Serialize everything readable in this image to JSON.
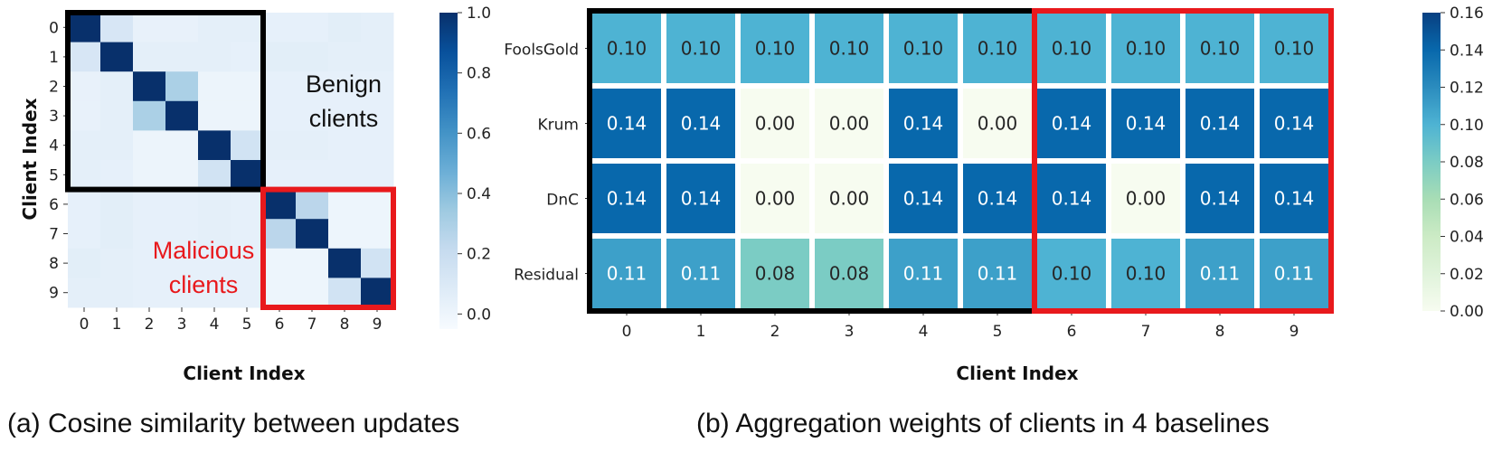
{
  "captions": {
    "a": "(a) Cosine similarity between updates",
    "b": "(b) Aggregation weights of clients in 4 baselines"
  },
  "annotations": {
    "benign_line1": "Benign",
    "benign_line2": "clients",
    "malicious_line1": "Malicious",
    "malicious_line2": "clients"
  },
  "colors": {
    "benign_box": "#000000",
    "malicious_box": "#e8191c",
    "malicious_text": "#e8191c"
  },
  "chart_data": [
    {
      "type": "heatmap",
      "title": "",
      "xlabel": "Client Index",
      "ylabel": "Client Index",
      "x": [
        "0",
        "1",
        "2",
        "3",
        "4",
        "5",
        "6",
        "7",
        "8",
        "9"
      ],
      "y": [
        "0",
        "1",
        "2",
        "3",
        "4",
        "5",
        "6",
        "7",
        "8",
        "9"
      ],
      "colormap": "Blues",
      "vmin": -0.05,
      "vmax": 1.0,
      "colorbar_ticks": [
        "1.0",
        "0.8",
        "0.6",
        "0.4",
        "0.2",
        "0.0"
      ],
      "colorbar_tick_values": [
        1.0,
        0.8,
        0.6,
        0.4,
        0.2,
        0.0
      ],
      "values": [
        [
          1.0,
          0.12,
          0.03,
          0.03,
          0.05,
          0.05,
          0.04,
          0.04,
          0.06,
          0.05
        ],
        [
          0.12,
          1.0,
          0.05,
          0.05,
          0.05,
          0.04,
          0.06,
          0.06,
          0.05,
          0.05
        ],
        [
          0.03,
          0.05,
          1.0,
          0.3,
          0.01,
          0.01,
          0.04,
          0.04,
          0.04,
          0.04
        ],
        [
          0.03,
          0.05,
          0.3,
          1.0,
          0.01,
          0.01,
          0.04,
          0.04,
          0.04,
          0.04
        ],
        [
          0.05,
          0.05,
          0.01,
          0.01,
          1.0,
          0.15,
          0.05,
          0.05,
          0.04,
          0.04
        ],
        [
          0.05,
          0.04,
          0.01,
          0.01,
          0.15,
          1.0,
          0.04,
          0.04,
          0.04,
          0.04
        ],
        [
          0.04,
          0.06,
          0.04,
          0.04,
          0.05,
          0.04,
          1.0,
          0.25,
          0.0,
          0.0
        ],
        [
          0.04,
          0.06,
          0.04,
          0.04,
          0.05,
          0.04,
          0.25,
          1.0,
          0.0,
          0.0
        ],
        [
          0.06,
          0.05,
          0.04,
          0.04,
          0.04,
          0.04,
          0.0,
          0.0,
          1.0,
          0.15
        ],
        [
          0.05,
          0.05,
          0.04,
          0.04,
          0.04,
          0.04,
          0.0,
          0.0,
          0.15,
          1.0
        ]
      ],
      "benign_group": [
        0,
        1,
        2,
        3,
        4,
        5
      ],
      "malicious_group": [
        6,
        7,
        8,
        9
      ]
    },
    {
      "type": "heatmap",
      "title": "",
      "xlabel": "Client Index",
      "ylabel": "",
      "x": [
        "0",
        "1",
        "2",
        "3",
        "4",
        "5",
        "6",
        "7",
        "8",
        "9"
      ],
      "y": [
        "FoolsGold",
        "Krum",
        "DnC",
        "Residual"
      ],
      "colormap": "GnBu",
      "vmin": 0.0,
      "vmax": 0.16,
      "colorbar_ticks": [
        "0.16",
        "0.14",
        "0.12",
        "0.10",
        "0.08",
        "0.06",
        "0.04",
        "0.02",
        "0.00"
      ],
      "colorbar_tick_values": [
        0.16,
        0.14,
        0.12,
        0.1,
        0.08,
        0.06,
        0.04,
        0.02,
        0.0
      ],
      "values": [
        [
          0.1,
          0.1,
          0.1,
          0.1,
          0.1,
          0.1,
          0.1,
          0.1,
          0.1,
          0.1
        ],
        [
          0.14,
          0.14,
          0.0,
          0.0,
          0.14,
          0.0,
          0.14,
          0.14,
          0.14,
          0.14
        ],
        [
          0.14,
          0.14,
          0.0,
          0.0,
          0.14,
          0.14,
          0.14,
          0.0,
          0.14,
          0.14
        ],
        [
          0.11,
          0.11,
          0.08,
          0.08,
          0.11,
          0.11,
          0.1,
          0.1,
          0.11,
          0.11
        ]
      ],
      "benign_group": [
        0,
        1,
        2,
        3,
        4,
        5
      ],
      "malicious_group": [
        6,
        7,
        8,
        9
      ]
    }
  ]
}
